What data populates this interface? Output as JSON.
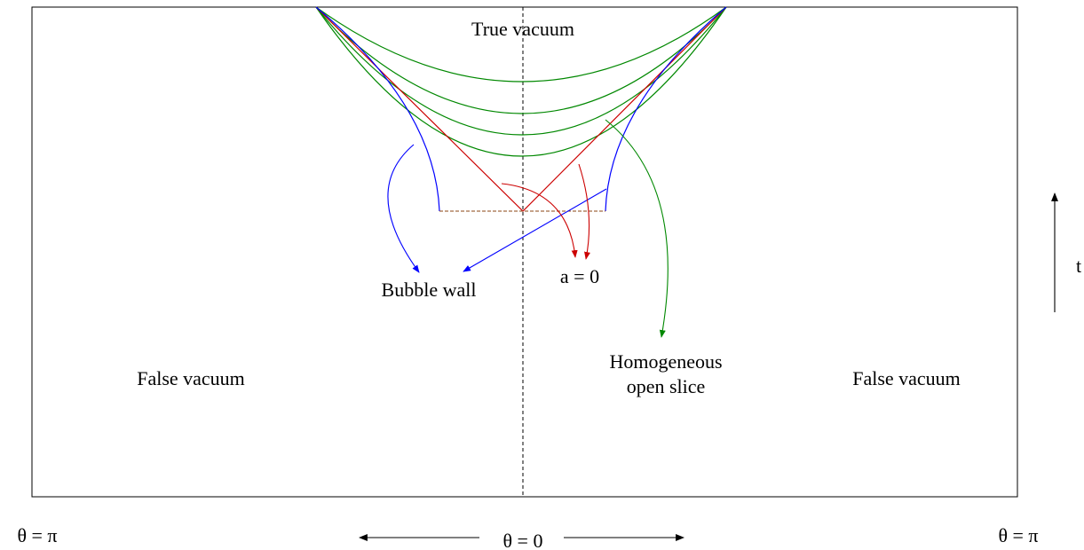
{
  "labels": {
    "true_vacuum": "True vacuum",
    "bubble_wall": "Bubble wall",
    "a_zero": "a = 0",
    "homogeneous_slice": [
      "Homogeneous",
      "open slice"
    ],
    "false_vacuum_left": "False vacuum",
    "false_vacuum_right": "False vacuum",
    "theta_pi_left": "θ = π",
    "theta_pi_right": "θ = π",
    "theta_zero": "θ = 0",
    "time": "t"
  }
}
